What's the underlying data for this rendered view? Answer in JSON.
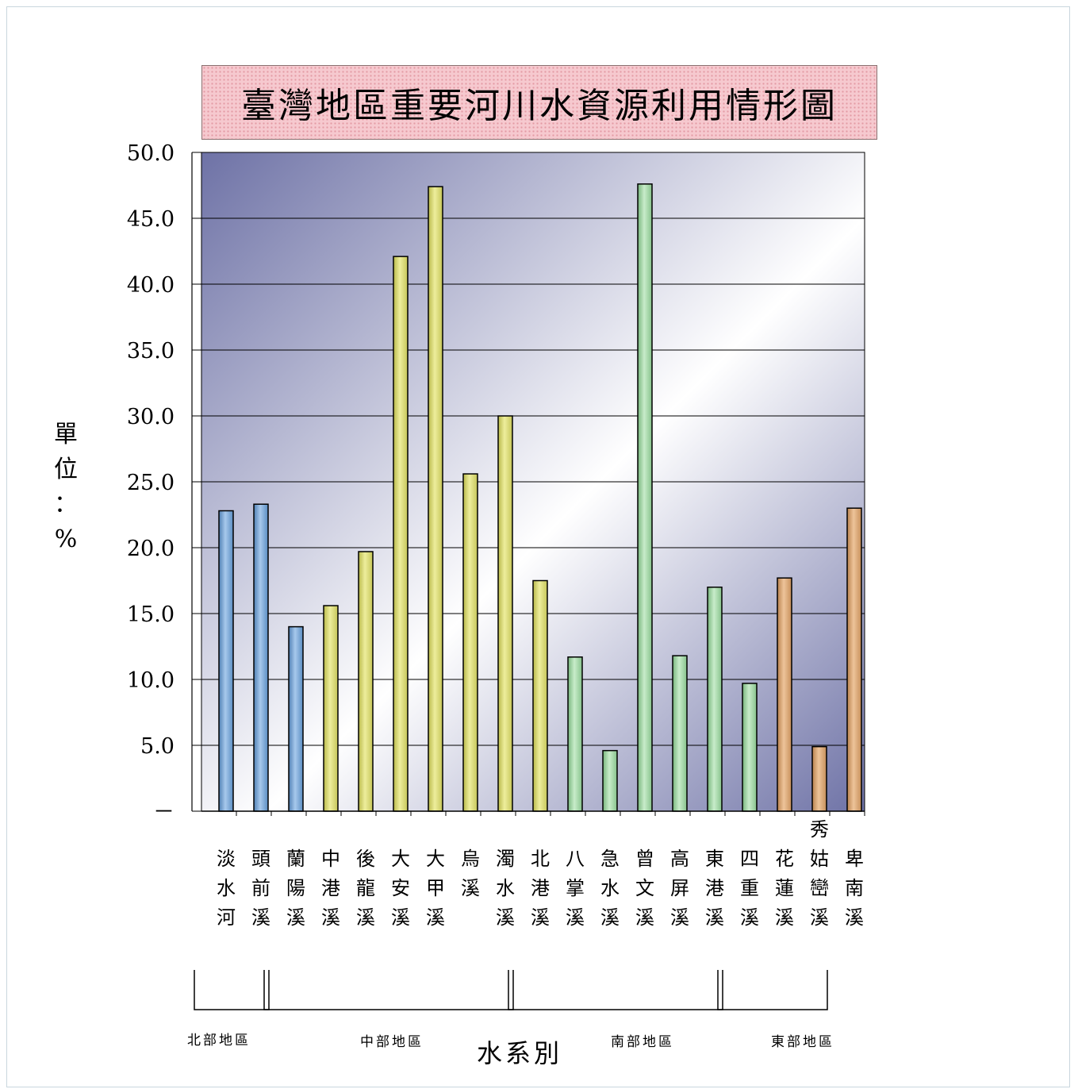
{
  "chart_data": {
    "type": "bar",
    "title": "臺灣地區重要河川水資源利用情形圖",
    "ylabel": "單位：%",
    "xlabel": "水系別",
    "ylim": [
      0,
      50
    ],
    "grid": true,
    "yticks": [
      {
        "value": 0,
        "label": "－"
      },
      {
        "value": 5,
        "label": "5.0"
      },
      {
        "value": 10,
        "label": "10.0"
      },
      {
        "value": 15,
        "label": "15.0"
      },
      {
        "value": 20,
        "label": "20.0"
      },
      {
        "value": 25,
        "label": "25.0"
      },
      {
        "value": 30,
        "label": "30.0"
      },
      {
        "value": 35,
        "label": "35.0"
      },
      {
        "value": 40,
        "label": "40.0"
      },
      {
        "value": 45,
        "label": "45.0"
      },
      {
        "value": 50,
        "label": "50.0"
      }
    ],
    "categories": [
      "淡水河",
      "頭前溪",
      "蘭陽溪",
      "中港溪",
      "後龍溪",
      "大安溪",
      "大甲溪",
      "烏溪",
      "濁水溪",
      "北港溪",
      "八掌溪",
      "急水溪",
      "曾文溪",
      "高屏溪",
      "東港溪",
      "四重溪",
      "花蓮溪",
      "秀姑巒溪",
      "卑南溪"
    ],
    "values": [
      22.8,
      23.3,
      14.0,
      15.6,
      19.7,
      42.1,
      47.4,
      25.6,
      30.0,
      17.5,
      11.7,
      4.6,
      47.6,
      11.8,
      17.0,
      9.7,
      17.7,
      4.9,
      23.0
    ],
    "groups": [
      {
        "label": "北部地區",
        "start": 0,
        "end": 1
      },
      {
        "label": "中部地區",
        "start": 2,
        "end": 8
      },
      {
        "label": "南部地區",
        "start": 9,
        "end": 14
      },
      {
        "label": "東部地區",
        "start": 15,
        "end": 17
      }
    ],
    "bar_colors": [
      "#6fa0d0",
      "#6fa0d0",
      "#6fa0d0",
      "#d8d870",
      "#d8d870",
      "#d8d870",
      "#d8d870",
      "#d8d870",
      "#d8d870",
      "#d8d870",
      "#9fd3a2",
      "#9fd3a2",
      "#9fd3a2",
      "#9fd3a2",
      "#9fd3a2",
      "#9fd3a2",
      "#d7a26f",
      "#d7a26f",
      "#d7a26f"
    ],
    "background_gradient": [
      "#6e72a6",
      "#ffffff",
      "#6e72a6"
    ]
  }
}
